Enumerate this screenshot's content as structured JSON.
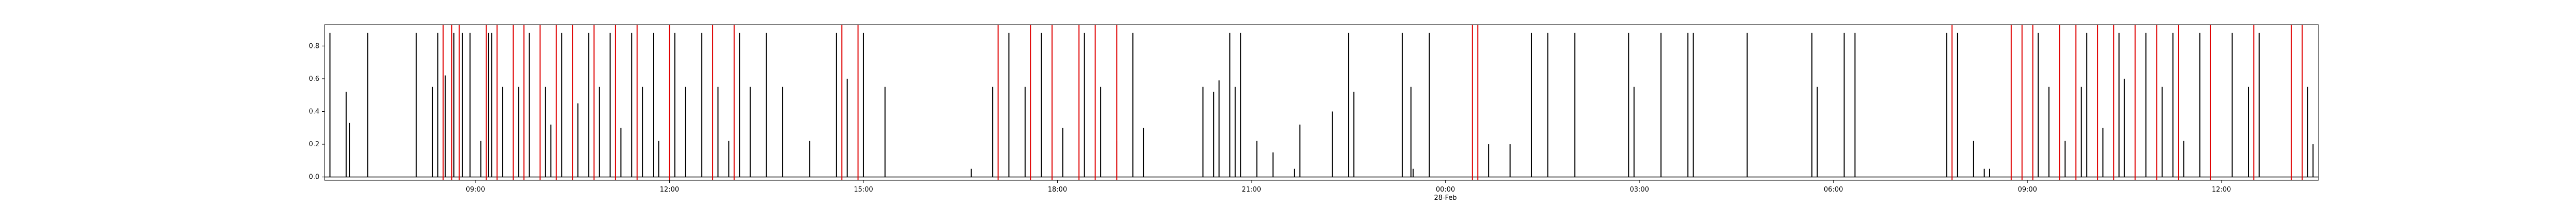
{
  "chart_data": {
    "type": "bar",
    "title": "",
    "xlabel": "",
    "ylabel": "",
    "x_range": [
      "2025-02-27 06:40",
      "2025-02-28 13:30"
    ],
    "ylim": [
      -0.02,
      0.93
    ],
    "grid": false,
    "legend": "none",
    "colors": {
      "activity": "#000000",
      "marker": "#e00000"
    },
    "y_ticks": [
      {
        "value": 0.0,
        "label": "0.0"
      },
      {
        "value": 0.2,
        "label": "0.2"
      },
      {
        "value": 0.4,
        "label": "0.4"
      },
      {
        "value": 0.6,
        "label": "0.6"
      },
      {
        "value": 0.8,
        "label": "0.8"
      }
    ],
    "x_ticks": [
      {
        "time": "2025-02-27 09:00",
        "label": "09:00",
        "sublabel": ""
      },
      {
        "time": "2025-02-27 12:00",
        "label": "12:00",
        "sublabel": ""
      },
      {
        "time": "2025-02-27 15:00",
        "label": "15:00",
        "sublabel": ""
      },
      {
        "time": "2025-02-27 18:00",
        "label": "18:00",
        "sublabel": ""
      },
      {
        "time": "2025-02-27 21:00",
        "label": "21:00",
        "sublabel": ""
      },
      {
        "time": "2025-02-28 00:00",
        "label": "00:00",
        "sublabel": "28-Feb"
      },
      {
        "time": "2025-02-28 03:00",
        "label": "03:00",
        "sublabel": ""
      },
      {
        "time": "2025-02-28 06:00",
        "label": "06:00",
        "sublabel": ""
      },
      {
        "time": "2025-02-28 09:00",
        "label": "09:00",
        "sublabel": ""
      },
      {
        "time": "2025-02-28 12:00",
        "label": "12:00",
        "sublabel": ""
      }
    ],
    "series": [
      {
        "kind": "activity-spikes",
        "points": [
          [
            "2025-02-27 06:45",
            0.88
          ],
          [
            "2025-02-27 07:00",
            0.52
          ],
          [
            "2025-02-27 07:03",
            0.33
          ],
          [
            "2025-02-27 07:20",
            0.88
          ],
          [
            "2025-02-27 08:05",
            0.88
          ],
          [
            "2025-02-27 08:20",
            0.55
          ],
          [
            "2025-02-27 08:25",
            0.88
          ],
          [
            "2025-02-27 08:32",
            0.62
          ],
          [
            "2025-02-27 08:40",
            0.88
          ],
          [
            "2025-02-27 08:48",
            0.88
          ],
          [
            "2025-02-27 08:55",
            0.88
          ],
          [
            "2025-02-27 09:05",
            0.22
          ],
          [
            "2025-02-27 09:12",
            0.88
          ],
          [
            "2025-02-27 09:15",
            0.88
          ],
          [
            "2025-02-27 09:25",
            0.55
          ],
          [
            "2025-02-27 09:40",
            0.55
          ],
          [
            "2025-02-27 09:50",
            0.88
          ],
          [
            "2025-02-27 10:05",
            0.55
          ],
          [
            "2025-02-27 10:10",
            0.32
          ],
          [
            "2025-02-27 10:20",
            0.88
          ],
          [
            "2025-02-27 10:35",
            0.45
          ],
          [
            "2025-02-27 10:45",
            0.88
          ],
          [
            "2025-02-27 10:55",
            0.55
          ],
          [
            "2025-02-27 11:05",
            0.88
          ],
          [
            "2025-02-27 11:15",
            0.3
          ],
          [
            "2025-02-27 11:25",
            0.88
          ],
          [
            "2025-02-27 11:35",
            0.55
          ],
          [
            "2025-02-27 11:45",
            0.88
          ],
          [
            "2025-02-27 11:50",
            0.22
          ],
          [
            "2025-02-27 12:05",
            0.88
          ],
          [
            "2025-02-27 12:15",
            0.55
          ],
          [
            "2025-02-27 12:30",
            0.88
          ],
          [
            "2025-02-27 12:45",
            0.55
          ],
          [
            "2025-02-27 12:55",
            0.22
          ],
          [
            "2025-02-27 13:05",
            0.88
          ],
          [
            "2025-02-27 13:15",
            0.55
          ],
          [
            "2025-02-27 13:30",
            0.88
          ],
          [
            "2025-02-27 13:45",
            0.55
          ],
          [
            "2025-02-27 14:10",
            0.22
          ],
          [
            "2025-02-27 14:35",
            0.88
          ],
          [
            "2025-02-27 14:45",
            0.6
          ],
          [
            "2025-02-27 15:00",
            0.88
          ],
          [
            "2025-02-27 15:20",
            0.55
          ],
          [
            "2025-02-27 16:40",
            0.05
          ],
          [
            "2025-02-27 17:00",
            0.55
          ],
          [
            "2025-02-27 17:15",
            0.88
          ],
          [
            "2025-02-27 17:30",
            0.55
          ],
          [
            "2025-02-27 17:45",
            0.88
          ],
          [
            "2025-02-27 18:05",
            0.3
          ],
          [
            "2025-02-27 18:25",
            0.88
          ],
          [
            "2025-02-27 18:40",
            0.55
          ],
          [
            "2025-02-27 18:55",
            0.22
          ],
          [
            "2025-02-27 19:10",
            0.88
          ],
          [
            "2025-02-27 19:20",
            0.3
          ],
          [
            "2025-02-27 20:15",
            0.55
          ],
          [
            "2025-02-27 20:25",
            0.52
          ],
          [
            "2025-02-27 20:30",
            0.59
          ],
          [
            "2025-02-27 20:40",
            0.88
          ],
          [
            "2025-02-27 20:45",
            0.55
          ],
          [
            "2025-02-27 20:50",
            0.88
          ],
          [
            "2025-02-27 21:05",
            0.22
          ],
          [
            "2025-02-27 21:20",
            0.15
          ],
          [
            "2025-02-27 21:40",
            0.05
          ],
          [
            "2025-02-27 21:45",
            0.32
          ],
          [
            "2025-02-27 22:15",
            0.4
          ],
          [
            "2025-02-27 22:30",
            0.88
          ],
          [
            "2025-02-27 22:35",
            0.52
          ],
          [
            "2025-02-27 23:20",
            0.88
          ],
          [
            "2025-02-27 23:28",
            0.55
          ],
          [
            "2025-02-27 23:30",
            0.05
          ],
          [
            "2025-02-27 23:45",
            0.88
          ],
          [
            "2025-02-28 00:40",
            0.2
          ],
          [
            "2025-02-28 01:00",
            0.2
          ],
          [
            "2025-02-28 01:20",
            0.88
          ],
          [
            "2025-02-28 01:35",
            0.88
          ],
          [
            "2025-02-28 02:00",
            0.88
          ],
          [
            "2025-02-28 02:50",
            0.88
          ],
          [
            "2025-02-28 02:55",
            0.55
          ],
          [
            "2025-02-28 03:20",
            0.88
          ],
          [
            "2025-02-28 03:45",
            0.88
          ],
          [
            "2025-02-28 03:50",
            0.88
          ],
          [
            "2025-02-28 04:40",
            0.88
          ],
          [
            "2025-02-28 05:40",
            0.88
          ],
          [
            "2025-02-28 05:45",
            0.55
          ],
          [
            "2025-02-28 06:10",
            0.88
          ],
          [
            "2025-02-28 06:20",
            0.88
          ],
          [
            "2025-02-28 07:45",
            0.88
          ],
          [
            "2025-02-28 07:55",
            0.88
          ],
          [
            "2025-02-28 08:10",
            0.22
          ],
          [
            "2025-02-28 08:20",
            0.05
          ],
          [
            "2025-02-28 08:25",
            0.05
          ],
          [
            "2025-02-28 09:10",
            0.88
          ],
          [
            "2025-02-28 09:20",
            0.55
          ],
          [
            "2025-02-28 09:35",
            0.22
          ],
          [
            "2025-02-28 09:50",
            0.55
          ],
          [
            "2025-02-28 09:55",
            0.88
          ],
          [
            "2025-02-28 10:10",
            0.3
          ],
          [
            "2025-02-28 10:25",
            0.88
          ],
          [
            "2025-02-28 10:30",
            0.6
          ],
          [
            "2025-02-28 10:50",
            0.88
          ],
          [
            "2025-02-28 11:05",
            0.55
          ],
          [
            "2025-02-28 11:15",
            0.88
          ],
          [
            "2025-02-28 11:25",
            0.22
          ],
          [
            "2025-02-28 11:40",
            0.88
          ],
          [
            "2025-02-28 12:10",
            0.88
          ],
          [
            "2025-02-28 12:25",
            0.55
          ],
          [
            "2025-02-28 12:35",
            0.88
          ],
          [
            "2025-02-28 13:20",
            0.55
          ],
          [
            "2025-02-28 13:25",
            0.2
          ]
        ]
      },
      {
        "kind": "event-markers",
        "times": [
          "2025-02-27 08:30",
          "2025-02-27 08:38",
          "2025-02-27 08:45",
          "2025-02-27 09:10",
          "2025-02-27 09:20",
          "2025-02-27 09:35",
          "2025-02-27 09:45",
          "2025-02-27 10:00",
          "2025-02-27 10:15",
          "2025-02-27 10:30",
          "2025-02-27 10:50",
          "2025-02-27 11:10",
          "2025-02-27 11:30",
          "2025-02-27 12:00",
          "2025-02-27 12:40",
          "2025-02-27 13:00",
          "2025-02-27 14:40",
          "2025-02-27 14:55",
          "2025-02-27 17:05",
          "2025-02-27 17:35",
          "2025-02-27 17:55",
          "2025-02-27 18:20",
          "2025-02-27 18:35",
          "2025-02-27 18:55",
          "2025-02-28 00:25",
          "2025-02-28 00:30",
          "2025-02-28 07:50",
          "2025-02-28 08:45",
          "2025-02-28 08:55",
          "2025-02-28 09:05",
          "2025-02-28 09:30",
          "2025-02-28 09:45",
          "2025-02-28 10:05",
          "2025-02-28 10:20",
          "2025-02-28 10:40",
          "2025-02-28 11:00",
          "2025-02-28 11:20",
          "2025-02-28 11:50",
          "2025-02-28 12:30",
          "2025-02-28 13:05",
          "2025-02-28 13:15"
        ]
      }
    ]
  }
}
